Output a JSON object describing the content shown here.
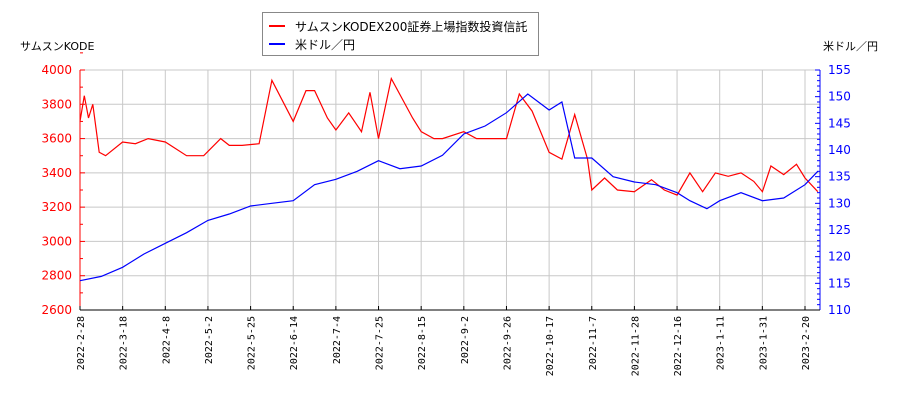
{
  "legend": {
    "series1_label": "サムスンKODEX200証券上場指数投資信託",
    "series2_label": "米ドル／円"
  },
  "axes": {
    "left_title": "サムスンKODE",
    "right_title": "米ドル／円"
  },
  "colors": {
    "series1": "#ff0000",
    "series2": "#0000ff",
    "grid": "#c8c8c8"
  },
  "chart_data": {
    "type": "line",
    "title": "",
    "xlabel": "",
    "ylabel_left": "サムスンKODE",
    "ylabel_right": "米ドル／円",
    "ylim_left": [
      2600,
      4000
    ],
    "ylim_right": [
      110,
      155
    ],
    "yticks_left": [
      2600,
      2800,
      3000,
      3200,
      3400,
      3600,
      3800,
      4000
    ],
    "yticks_right": [
      110,
      115,
      120,
      125,
      130,
      135,
      140,
      145,
      150,
      155
    ],
    "grid": true,
    "legend_position": "top-center",
    "x_tick_labels": [
      "2022-2-28",
      "2022-3-18",
      "2022-4-8",
      "2022-5-2",
      "2022-5-25",
      "2022-6-14",
      "2022-7-4",
      "2022-7-25",
      "2022-8-15",
      "2022-9-2",
      "2022-9-26",
      "2022-10-17",
      "2022-11-7",
      "2022-11-28",
      "2022-12-16",
      "2023-1-11",
      "2023-1-31",
      "2023-2-20"
    ],
    "series": [
      {
        "name": "サムスンKODEX200証券上場指数投資信託",
        "axis": "left",
        "color": "#ff0000",
        "x_index": [
          0,
          0.1,
          0.2,
          0.3,
          0.45,
          0.6,
          1.0,
          1.3,
          1.6,
          2.0,
          2.5,
          2.9,
          3.3,
          3.5,
          3.8,
          4.2,
          4.5,
          5.0,
          5.3,
          5.5,
          5.8,
          6.0,
          6.3,
          6.6,
          6.8,
          7.0,
          7.3,
          7.8,
          8.0,
          8.3,
          8.5,
          9.0,
          9.3,
          9.6,
          10.0,
          10.3,
          10.6,
          11.0,
          11.3,
          11.6,
          11.9,
          12.0,
          12.3,
          12.6,
          13.0,
          13.4,
          13.7,
          14.0,
          14.3,
          14.6,
          14.9,
          15.2,
          15.5,
          15.8,
          16.0,
          16.2,
          16.5,
          16.8,
          17.0,
          17.3
        ],
        "values": [
          3700,
          3850,
          3720,
          3800,
          3520,
          3500,
          3580,
          3570,
          3600,
          3580,
          3500,
          3500,
          3600,
          3560,
          3560,
          3570,
          3940,
          3700,
          3880,
          3880,
          3720,
          3650,
          3750,
          3640,
          3870,
          3600,
          3950,
          3720,
          3640,
          3600,
          3600,
          3640,
          3600,
          3600,
          3600,
          3860,
          3760,
          3520,
          3480,
          3740,
          3480,
          3300,
          3370,
          3300,
          3290,
          3360,
          3300,
          3270,
          3400,
          3290,
          3400,
          3380,
          3400,
          3350,
          3290,
          3440,
          3390,
          3450,
          3370,
          3290
        ]
      },
      {
        "name": "米ドル／円",
        "axis": "right",
        "color": "#0000ff",
        "x_index": [
          0,
          0.5,
          1.0,
          1.5,
          2.0,
          2.5,
          3.0,
          3.5,
          4.0,
          4.5,
          5.0,
          5.5,
          6.0,
          6.5,
          7.0,
          7.5,
          8.0,
          8.5,
          9.0,
          9.5,
          10.0,
          10.5,
          11.0,
          11.3,
          11.6,
          12.0,
          12.5,
          13.0,
          13.5,
          14.0,
          14.3,
          14.7,
          15.0,
          15.5,
          16.0,
          16.5,
          17.0,
          17.3
        ],
        "values": [
          115.5,
          116.3,
          118.0,
          120.5,
          122.5,
          124.5,
          126.8,
          128.0,
          129.5,
          130.0,
          130.5,
          133.5,
          134.5,
          136.0,
          138.0,
          136.5,
          137.0,
          139.0,
          143.0,
          144.5,
          147.0,
          150.5,
          147.5,
          149.0,
          138.5,
          138.5,
          135.0,
          134.0,
          133.5,
          132.0,
          130.5,
          129.0,
          130.5,
          132.0,
          130.5,
          131.0,
          133.5,
          136.0
        ]
      }
    ]
  }
}
